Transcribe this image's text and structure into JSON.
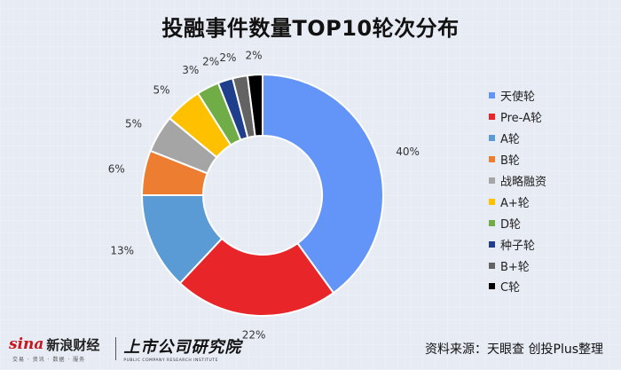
{
  "chart_data": {
    "type": "pie",
    "title": "投融事件数量TOP10轮次分布",
    "donut": true,
    "legend_position": "right",
    "series": [
      {
        "name": "天使轮",
        "value": 40,
        "label": "40%",
        "color": "#6395f9"
      },
      {
        "name": "Pre-A轮",
        "value": 22,
        "label": "22%",
        "color": "#e8262a"
      },
      {
        "name": "A轮",
        "value": 13,
        "label": "13%",
        "color": "#5b9bd5"
      },
      {
        "name": "B轮",
        "value": 6,
        "label": "6%",
        "color": "#ed7d31"
      },
      {
        "name": "战略融资",
        "value": 5,
        "label": "5%",
        "color": "#a5a5a5"
      },
      {
        "name": "A+轮",
        "value": 5,
        "label": "5%",
        "color": "#ffc000"
      },
      {
        "name": "D轮",
        "value": 3,
        "label": "3%",
        "color": "#70ad47"
      },
      {
        "name": "种子轮",
        "value": 2,
        "label": "2%",
        "color": "#1f3f8c"
      },
      {
        "name": "B+轮",
        "value": 2,
        "label": "2%",
        "color": "#636363"
      },
      {
        "name": "C轮",
        "value": 2,
        "label": "2%",
        "color": "#000000"
      }
    ]
  },
  "footer": {
    "sina_word": "sina",
    "sina_name": "新浪财经",
    "sina_tagline": "交易 · 资讯 · 数据 · 服务",
    "pcri_name": "上市公司研究院",
    "pcri_tagline": "PUBLIC COMPANY RESEARCH INSTITUTE",
    "source": "资料来源：天眼查 创投Plus整理"
  }
}
